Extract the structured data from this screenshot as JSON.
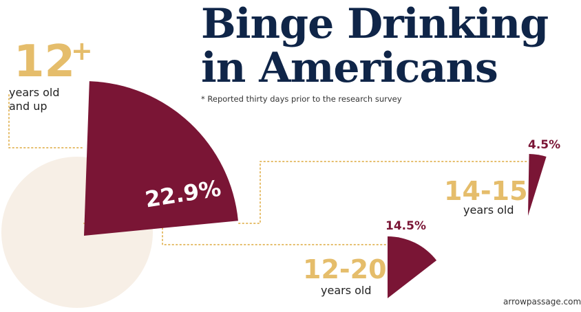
{
  "header": {
    "title_line1": "Binge Drinking",
    "title_line2": "in Americans",
    "subtitle": "* Reported thirty days prior to the research survey"
  },
  "chart_data": {
    "type": "pie",
    "title": "Binge Drinking in Americans",
    "subtitle": "* Reported thirty days prior to the research survey",
    "categories": [
      "12+ years old and up",
      "12-20 years old",
      "14-15 years old"
    ],
    "values": [
      22.9,
      14.5,
      4.5
    ],
    "unit": "%",
    "colors": {
      "slice": "#7a1535",
      "label": "#e5bd6b",
      "background_disc": "#f7efe6",
      "dotted_line": "#e5bd6b"
    }
  },
  "groups": {
    "adults": {
      "age": "12",
      "plus": "+",
      "line1": "years old",
      "line2": "and up",
      "value_label": "22.9%"
    },
    "youth": {
      "age": "12-20",
      "line1": "years old",
      "value_label": "14.5%"
    },
    "teens": {
      "age": "14-15",
      "line1": "years old",
      "value_label": "4.5%"
    }
  },
  "footer": {
    "credit": "arrowpassage.com"
  }
}
